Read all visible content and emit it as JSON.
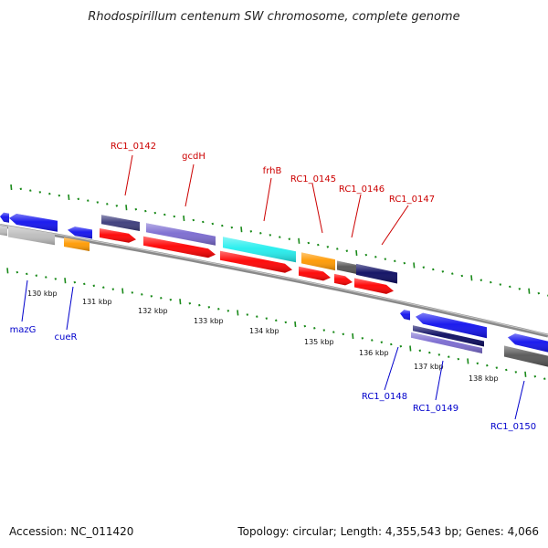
{
  "title": "Rhodospirillum centenum SW chromosome, complete genome",
  "accession": "Accession: NC_011420",
  "topology": "Topology: circular; Length: 4,355,543 bp; Genes: 4,066",
  "scale_labels": [
    "130 kbp",
    "131 kbp",
    "132 kbp",
    "133 kbp",
    "134 kbp",
    "135 kbp",
    "136 kbp",
    "137 kbp",
    "138 kbp"
  ],
  "upper_genes": [
    "RC1_0142",
    "gcdH",
    "frhB",
    "RC1_0145",
    "RC1_0146",
    "RC1_0147"
  ],
  "lower_genes": [
    "mazG",
    "cueR",
    "RC1_0148",
    "RC1_0149",
    "RC1_0150"
  ],
  "colors": {
    "forward_label": "#cc0000",
    "reverse_label": "#0000cc",
    "backbone": "#8a8a8a",
    "ticks": "#1a8a1a",
    "cds": "#ff0000",
    "blue": "#1010ee",
    "navy": "#0a0a60",
    "slate": "#3a3a7a",
    "lavender": "#7a6ad0",
    "cyan": "#22eeee",
    "orange": "#ff9900",
    "gray": "#8a8a8a",
    "dark_gray": "#555555",
    "light_gray": "#bdbdbd"
  }
}
